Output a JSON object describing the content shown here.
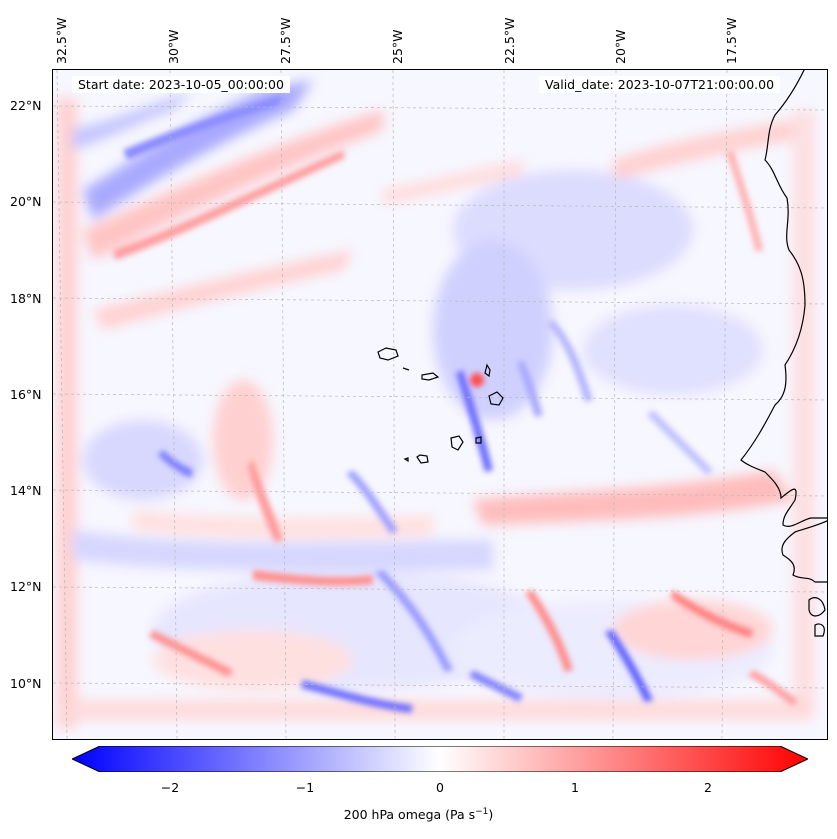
{
  "map": {
    "info_left": "Start date: 2023-10-05_00:00:00",
    "info_right": "Valid_date: 2023-10-07T21:00:00.00",
    "lon_labels": [
      "32.5°W",
      "30°W",
      "27.5°W",
      "25°W",
      "22.5°W",
      "20°W",
      "17.5°W"
    ],
    "lat_labels": [
      "22°N",
      "20°N",
      "18°N",
      "16°N",
      "14°N",
      "12°N",
      "10°N"
    ],
    "extent": {
      "lon_min": -32.6,
      "lon_max": -15.3,
      "lat_min": 8.8,
      "lat_max": 22.8
    },
    "coastline": "Cabo Verde islands and West African coast (Senegal, Gambia, Guinea-Bissau)"
  },
  "colorbar": {
    "label": "200 hPa omega (Pa s",
    "label_sup": "−1",
    "label_close": ")",
    "ticks": [
      "−2",
      "−1",
      "0",
      "1",
      "2"
    ],
    "tick_values": [
      -2,
      -1,
      0,
      1,
      2
    ],
    "range": [
      -2.75,
      2.75
    ],
    "colormap": "bwr",
    "color_min": "#0000ff",
    "color_mid": "#ffffff",
    "color_max": "#ff0000"
  }
}
